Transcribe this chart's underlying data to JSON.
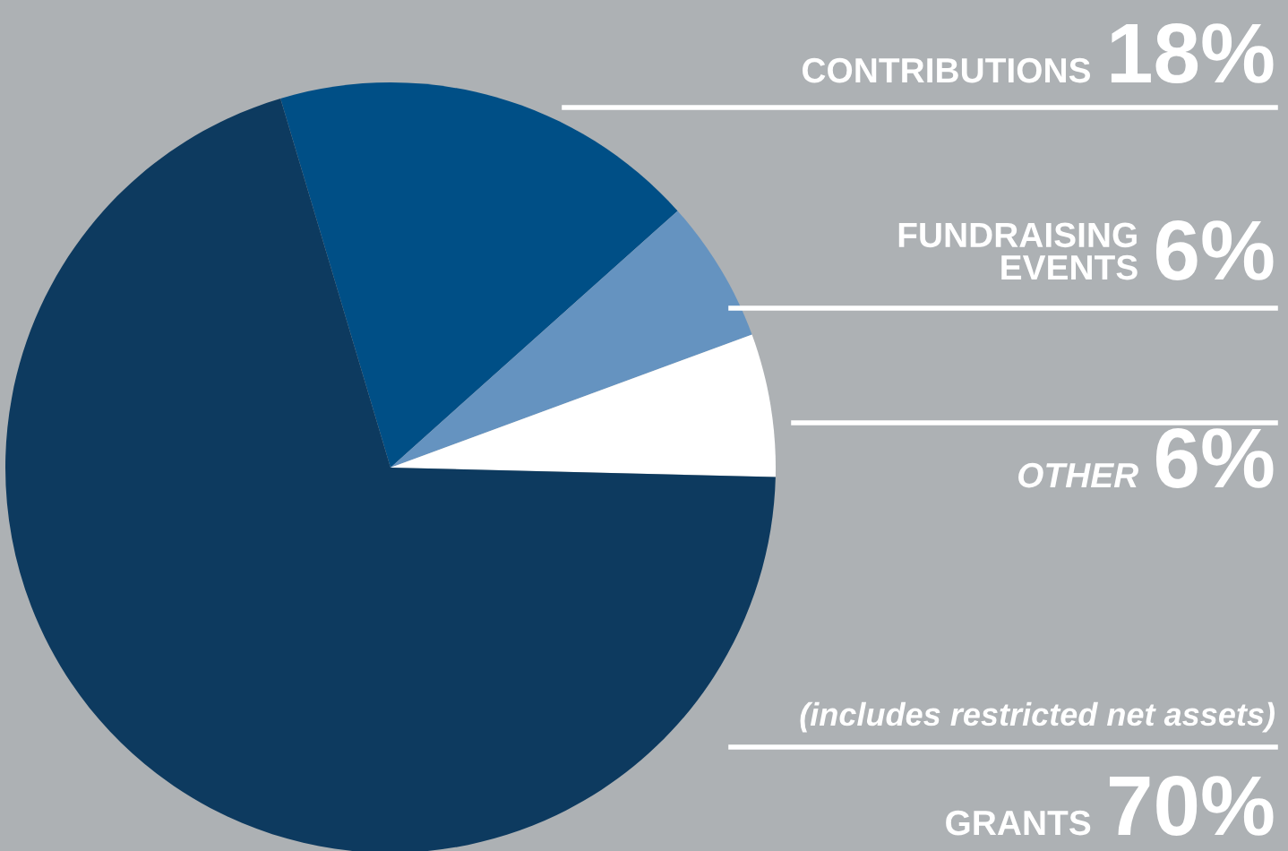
{
  "chart_data": {
    "type": "pie",
    "categories": [
      "CONTRIBUTIONS",
      "FUNDRAISING\nEVENTS",
      "OTHER",
      "GRANTS"
    ],
    "values": [
      18,
      6,
      6,
      70
    ],
    "value_labels": [
      "18%",
      "6%",
      "6%",
      "70%"
    ],
    "colors": [
      "#004f86",
      "#6593c0",
      "#ffffff",
      "#0d3a5f"
    ],
    "annotations": [
      "(includes restricted net assets)"
    ],
    "legend": false
  }
}
